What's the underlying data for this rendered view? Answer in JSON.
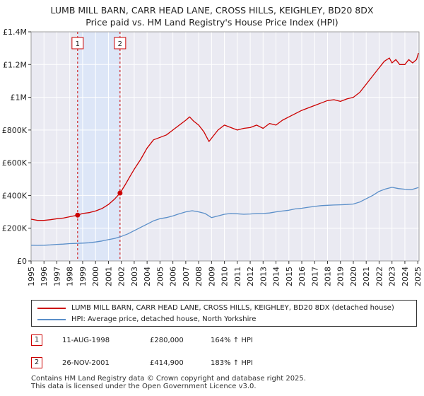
{
  "header": {
    "title_line1": "LUMB MILL BARN, CARR HEAD LANE, CROSS HILLS, KEIGHLEY, BD20 8DX",
    "title_line2": "Price paid vs. HM Land Registry's House Price Index (HPI)"
  },
  "chart_data": {
    "type": "line",
    "title": "LUMB MILL BARN, CARR HEAD LANE, CROSS HILLS, KEIGHLEY, BD20 8DX",
    "subtitle": "Price paid vs. HM Land Registry's House Price Index (HPI)",
    "xlabel": "",
    "ylabel": "",
    "xlim": [
      1995.0,
      2025.1
    ],
    "ylim": [
      0,
      1400000
    ],
    "grid": true,
    "y_ticks": [
      {
        "value": 0,
        "label": "£0"
      },
      {
        "value": 200000,
        "label": "£200K"
      },
      {
        "value": 400000,
        "label": "£400K"
      },
      {
        "value": 600000,
        "label": "£600K"
      },
      {
        "value": 800000,
        "label": "£800K"
      },
      {
        "value": 1000000,
        "label": "£1M"
      },
      {
        "value": 1200000,
        "label": "£1.2M"
      },
      {
        "value": 1400000,
        "label": "£1.4M"
      }
    ],
    "x_ticks": [
      "1995",
      "1996",
      "1997",
      "1998",
      "1999",
      "2000",
      "2001",
      "2002",
      "2003",
      "2004",
      "2005",
      "2006",
      "2007",
      "2008",
      "2009",
      "2010",
      "2011",
      "2012",
      "2013",
      "2014",
      "2015",
      "2016",
      "2017",
      "2018",
      "2019",
      "2020",
      "2021",
      "2022",
      "2023",
      "2024",
      "2025"
    ],
    "shaded_period": [
      1998.61,
      2001.9
    ],
    "series": [
      {
        "name": "LUMB MILL BARN, CARR HEAD LANE, CROSS HILLS, KEIGHLEY, BD20 8DX (detached house)",
        "color": "#cc0000",
        "x": [
          1995.0,
          1995.5,
          1996.0,
          1996.5,
          1997.0,
          1997.5,
          1998.0,
          1998.61,
          1999.0,
          1999.5,
          2000.0,
          2000.5,
          2001.0,
          2001.5,
          2001.9,
          2002.3,
          2002.7,
          2003.0,
          2003.5,
          2004.0,
          2004.5,
          2005.0,
          2005.5,
          2006.0,
          2006.5,
          2007.0,
          2007.3,
          2007.6,
          2008.0,
          2008.4,
          2008.8,
          2009.1,
          2009.5,
          2010.0,
          2010.5,
          2011.0,
          2011.5,
          2012.0,
          2012.5,
          2013.0,
          2013.5,
          2014.0,
          2014.5,
          2015.0,
          2015.5,
          2016.0,
          2016.5,
          2017.0,
          2017.5,
          2018.0,
          2018.5,
          2019.0,
          2019.5,
          2020.0,
          2020.5,
          2021.0,
          2021.5,
          2022.0,
          2022.4,
          2022.8,
          2023.0,
          2023.3,
          2023.6,
          2024.0,
          2024.3,
          2024.6,
          2024.9,
          2025.05
        ],
        "values": [
          255000,
          248000,
          248000,
          252000,
          258000,
          262000,
          270000,
          280000,
          290000,
          295000,
          305000,
          320000,
          345000,
          380000,
          414900,
          465000,
          520000,
          560000,
          620000,
          690000,
          740000,
          755000,
          770000,
          800000,
          830000,
          860000,
          880000,
          855000,
          830000,
          790000,
          730000,
          760000,
          800000,
          830000,
          815000,
          800000,
          810000,
          815000,
          830000,
          810000,
          840000,
          830000,
          860000,
          880000,
          900000,
          920000,
          935000,
          950000,
          965000,
          980000,
          985000,
          975000,
          990000,
          1000000,
          1030000,
          1080000,
          1130000,
          1180000,
          1220000,
          1240000,
          1210000,
          1230000,
          1200000,
          1200000,
          1230000,
          1210000,
          1230000,
          1270000
        ]
      },
      {
        "name": "HPI: Average price, detached house, North Yorkshire",
        "color": "#5b8fc9",
        "x": [
          1995.0,
          1995.5,
          1996.0,
          1996.5,
          1997.0,
          1997.5,
          1998.0,
          1998.5,
          1999.0,
          1999.5,
          2000.0,
          2000.5,
          2001.0,
          2001.5,
          2002.0,
          2002.5,
          2003.0,
          2003.5,
          2004.0,
          2004.5,
          2005.0,
          2005.5,
          2006.0,
          2006.5,
          2007.0,
          2007.5,
          2008.0,
          2008.5,
          2009.0,
          2009.5,
          2010.0,
          2010.5,
          2011.0,
          2011.5,
          2012.0,
          2012.5,
          2013.0,
          2013.5,
          2014.0,
          2014.5,
          2015.0,
          2015.5,
          2016.0,
          2016.5,
          2017.0,
          2017.5,
          2018.0,
          2018.5,
          2019.0,
          2019.5,
          2020.0,
          2020.5,
          2021.0,
          2021.5,
          2022.0,
          2022.5,
          2023.0,
          2023.5,
          2024.0,
          2024.5,
          2025.05
        ],
        "values": [
          96000,
          95000,
          96000,
          98000,
          101000,
          103000,
          106000,
          107000,
          109000,
          111000,
          116000,
          122000,
          130000,
          138000,
          150000,
          165000,
          185000,
          205000,
          225000,
          245000,
          258000,
          265000,
          275000,
          288000,
          300000,
          307000,
          300000,
          290000,
          265000,
          275000,
          285000,
          290000,
          288000,
          285000,
          287000,
          290000,
          290000,
          293000,
          300000,
          305000,
          310000,
          318000,
          322000,
          328000,
          333000,
          338000,
          340000,
          342000,
          343000,
          345000,
          348000,
          360000,
          380000,
          400000,
          425000,
          440000,
          450000,
          442000,
          438000,
          435000,
          448000
        ]
      }
    ],
    "sales": [
      {
        "label": "1",
        "x": 1998.61,
        "value": 280000
      },
      {
        "label": "2",
        "x": 2001.9,
        "value": 414900
      }
    ]
  },
  "legend": {
    "property_label": "LUMB MILL BARN, CARR HEAD LANE, CROSS HILLS, KEIGHLEY, BD20 8DX (detached house)",
    "hpi_label": "HPI: Average price, detached house, North Yorkshire",
    "property_color": "#cc0000",
    "hpi_color": "#5b8fc9"
  },
  "transactions": [
    {
      "num": "1",
      "date": "11-AUG-1998",
      "price": "£280,000",
      "hpi": "164% ↑ HPI"
    },
    {
      "num": "2",
      "date": "26-NOV-2001",
      "price": "£414,900",
      "hpi": "183% ↑ HPI"
    }
  ],
  "footer": {
    "line1": "Contains HM Land Registry data © Crown copyright and database right 2025.",
    "line2": "This data is licensed under the Open Government Licence v3.0."
  }
}
